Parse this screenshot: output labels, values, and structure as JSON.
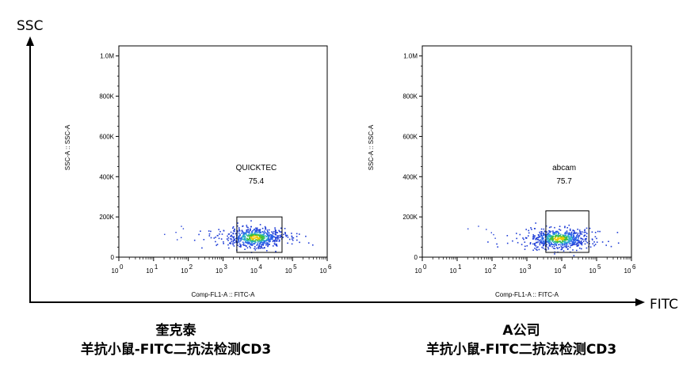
{
  "figure": {
    "y_axis_label": "SSC",
    "x_axis_label": "FITC",
    "colors": {
      "axis": "#000000",
      "arrow": "#000000"
    }
  },
  "chart_data": [
    {
      "type": "scatter",
      "xlabel": "Comp-FL1-A :: FITC-A",
      "ylabel": "SSC-A :: SSC-A",
      "x_scale": "log",
      "xlim": [
        1,
        1000000
      ],
      "ylim": [
        0,
        1050000
      ],
      "x_ticks": [
        "10",
        "10",
        "10",
        "10",
        "10",
        "10",
        "10"
      ],
      "x_tick_exponents": [
        "0",
        "1",
        "2",
        "3",
        "4",
        "5",
        "6"
      ],
      "y_ticks": [
        "0",
        "200K",
        "400K",
        "600K",
        "800K",
        "1.0M"
      ],
      "y_tick_values": [
        0,
        200000,
        400000,
        600000,
        800000,
        1000000
      ],
      "gate": {
        "name": "QUICKTEC",
        "value": "75.4",
        "x_range": [
          2500,
          50000
        ],
        "y_range": [
          0,
          200000
        ]
      },
      "population": {
        "center_x": 8000,
        "center_y": 100000
      },
      "caption_line1": "奎克泰",
      "caption_line2": "羊抗小鼠-FITC二抗法检测CD3"
    },
    {
      "type": "scatter",
      "xlabel": "Comp-FL1-A :: FITC-A",
      "ylabel": "SSC-A :: SSC-A",
      "x_scale": "log",
      "xlim": [
        1,
        1000000
      ],
      "ylim": [
        0,
        1050000
      ],
      "x_ticks": [
        "10",
        "10",
        "10",
        "10",
        "10",
        "10",
        "10"
      ],
      "x_tick_exponents": [
        "0",
        "1",
        "2",
        "3",
        "4",
        "5",
        "6"
      ],
      "y_ticks": [
        "0",
        "200K",
        "400K",
        "600K",
        "800K",
        "1.0M"
      ],
      "y_tick_values": [
        0,
        200000,
        400000,
        600000,
        800000,
        1000000
      ],
      "gate": {
        "name": "abcam",
        "value": "75.7",
        "x_range": [
          3500,
          60000
        ],
        "y_range": [
          0,
          230000
        ]
      },
      "population": {
        "center_x": 8000,
        "center_y": 95000
      },
      "caption_line1": "A公司",
      "caption_line2": "羊抗小鼠-FITC二抗法检测CD3"
    }
  ]
}
